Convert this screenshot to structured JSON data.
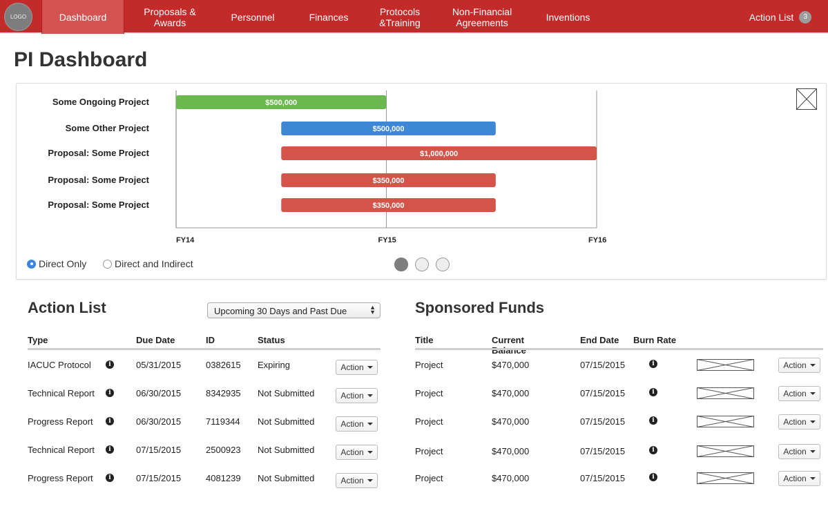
{
  "nav": {
    "logo": "LOGO",
    "items": [
      {
        "label": "Dashboard"
      },
      {
        "label": "Proposals &\nAwards"
      },
      {
        "label": "Personnel"
      },
      {
        "label": "Finances"
      },
      {
        "label": "Protocols\n&Training"
      },
      {
        "label": "Non-Financial\nAgreements"
      },
      {
        "label": "Inventions"
      }
    ],
    "action_list_label": "Action List",
    "action_list_count": "3"
  },
  "page_title": "PI Dashboard",
  "colors": {
    "nav": "#c32b2b",
    "green": "#6ab84e",
    "blue": "#3e87d5",
    "red": "#d4544a"
  },
  "chart_data": {
    "type": "bar",
    "orientation": "horizontal-gantt",
    "x_ticks": [
      "FY14",
      "FY15",
      "FY16"
    ],
    "bars": [
      {
        "label": "Some Ongoing Project",
        "value_label": "$500,000",
        "start": 0,
        "end": 1,
        "color": "#6ab84e"
      },
      {
        "label": "Some Other Project",
        "value_label": "$500,000",
        "start": 0.5,
        "end": 1.52,
        "color": "#3e87d5"
      },
      {
        "label": "Proposal: Some Project",
        "value_label": "$1,000,000",
        "start": 0.5,
        "end": 2,
        "color": "#d4544a"
      },
      {
        "label": "Proposal: Some Project",
        "value_label": "$350,000",
        "start": 0.5,
        "end": 1.52,
        "color": "#d4544a"
      },
      {
        "label": "Proposal: Some Project",
        "value_label": "$350,000",
        "start": 0.5,
        "end": 1.52,
        "color": "#d4544a"
      }
    ]
  },
  "chart_controls": {
    "radio_direct": "Direct Only",
    "radio_indirect": "Direct and Indirect",
    "selected": "Direct Only",
    "page": 1,
    "pages": 3
  },
  "action_list": {
    "title": "Action List",
    "filter": "Upcoming 30 Days and Past Due",
    "headers": {
      "type": "Type",
      "due": "Due Date",
      "id": "ID",
      "status": "Status"
    },
    "rows": [
      {
        "type": "IACUC Protocol",
        "due": "05/31/2015",
        "id": "0382615",
        "status": "Expiring",
        "action": "Action"
      },
      {
        "type": "Technical Report",
        "due": "06/30/2015",
        "id": "8342935",
        "status": "Not Submitted",
        "action": "Action"
      },
      {
        "type": "Progress Report",
        "due": "06/30/2015",
        "id": "7119344",
        "status": "Not Submitted",
        "action": "Action"
      },
      {
        "type": "Technical Report",
        "due": "07/15/2015",
        "id": "2500923",
        "status": "Not Submitted",
        "action": "Action"
      },
      {
        "type": "Progress Report",
        "due": "07/15/2015",
        "id": "4081239",
        "status": "Not Submitted",
        "action": "Action"
      }
    ]
  },
  "sponsored_funds": {
    "title": "Sponsored Funds",
    "headers": {
      "title": "Title",
      "balance": "Current\nBalance",
      "end": "End Date",
      "burn": "Burn Rate"
    },
    "rows": [
      {
        "title": "Project",
        "balance": "$470,000",
        "end": "07/15/2015",
        "action": "Action"
      },
      {
        "title": "Project",
        "balance": "$470,000",
        "end": "07/15/2015",
        "action": "Action"
      },
      {
        "title": "Project",
        "balance": "$470,000",
        "end": "07/15/2015",
        "action": "Action"
      },
      {
        "title": "Project",
        "balance": "$470,000",
        "end": "07/15/2015",
        "action": "Action"
      },
      {
        "title": "Project",
        "balance": "$470,000",
        "end": "07/15/2015",
        "action": "Action"
      }
    ]
  }
}
